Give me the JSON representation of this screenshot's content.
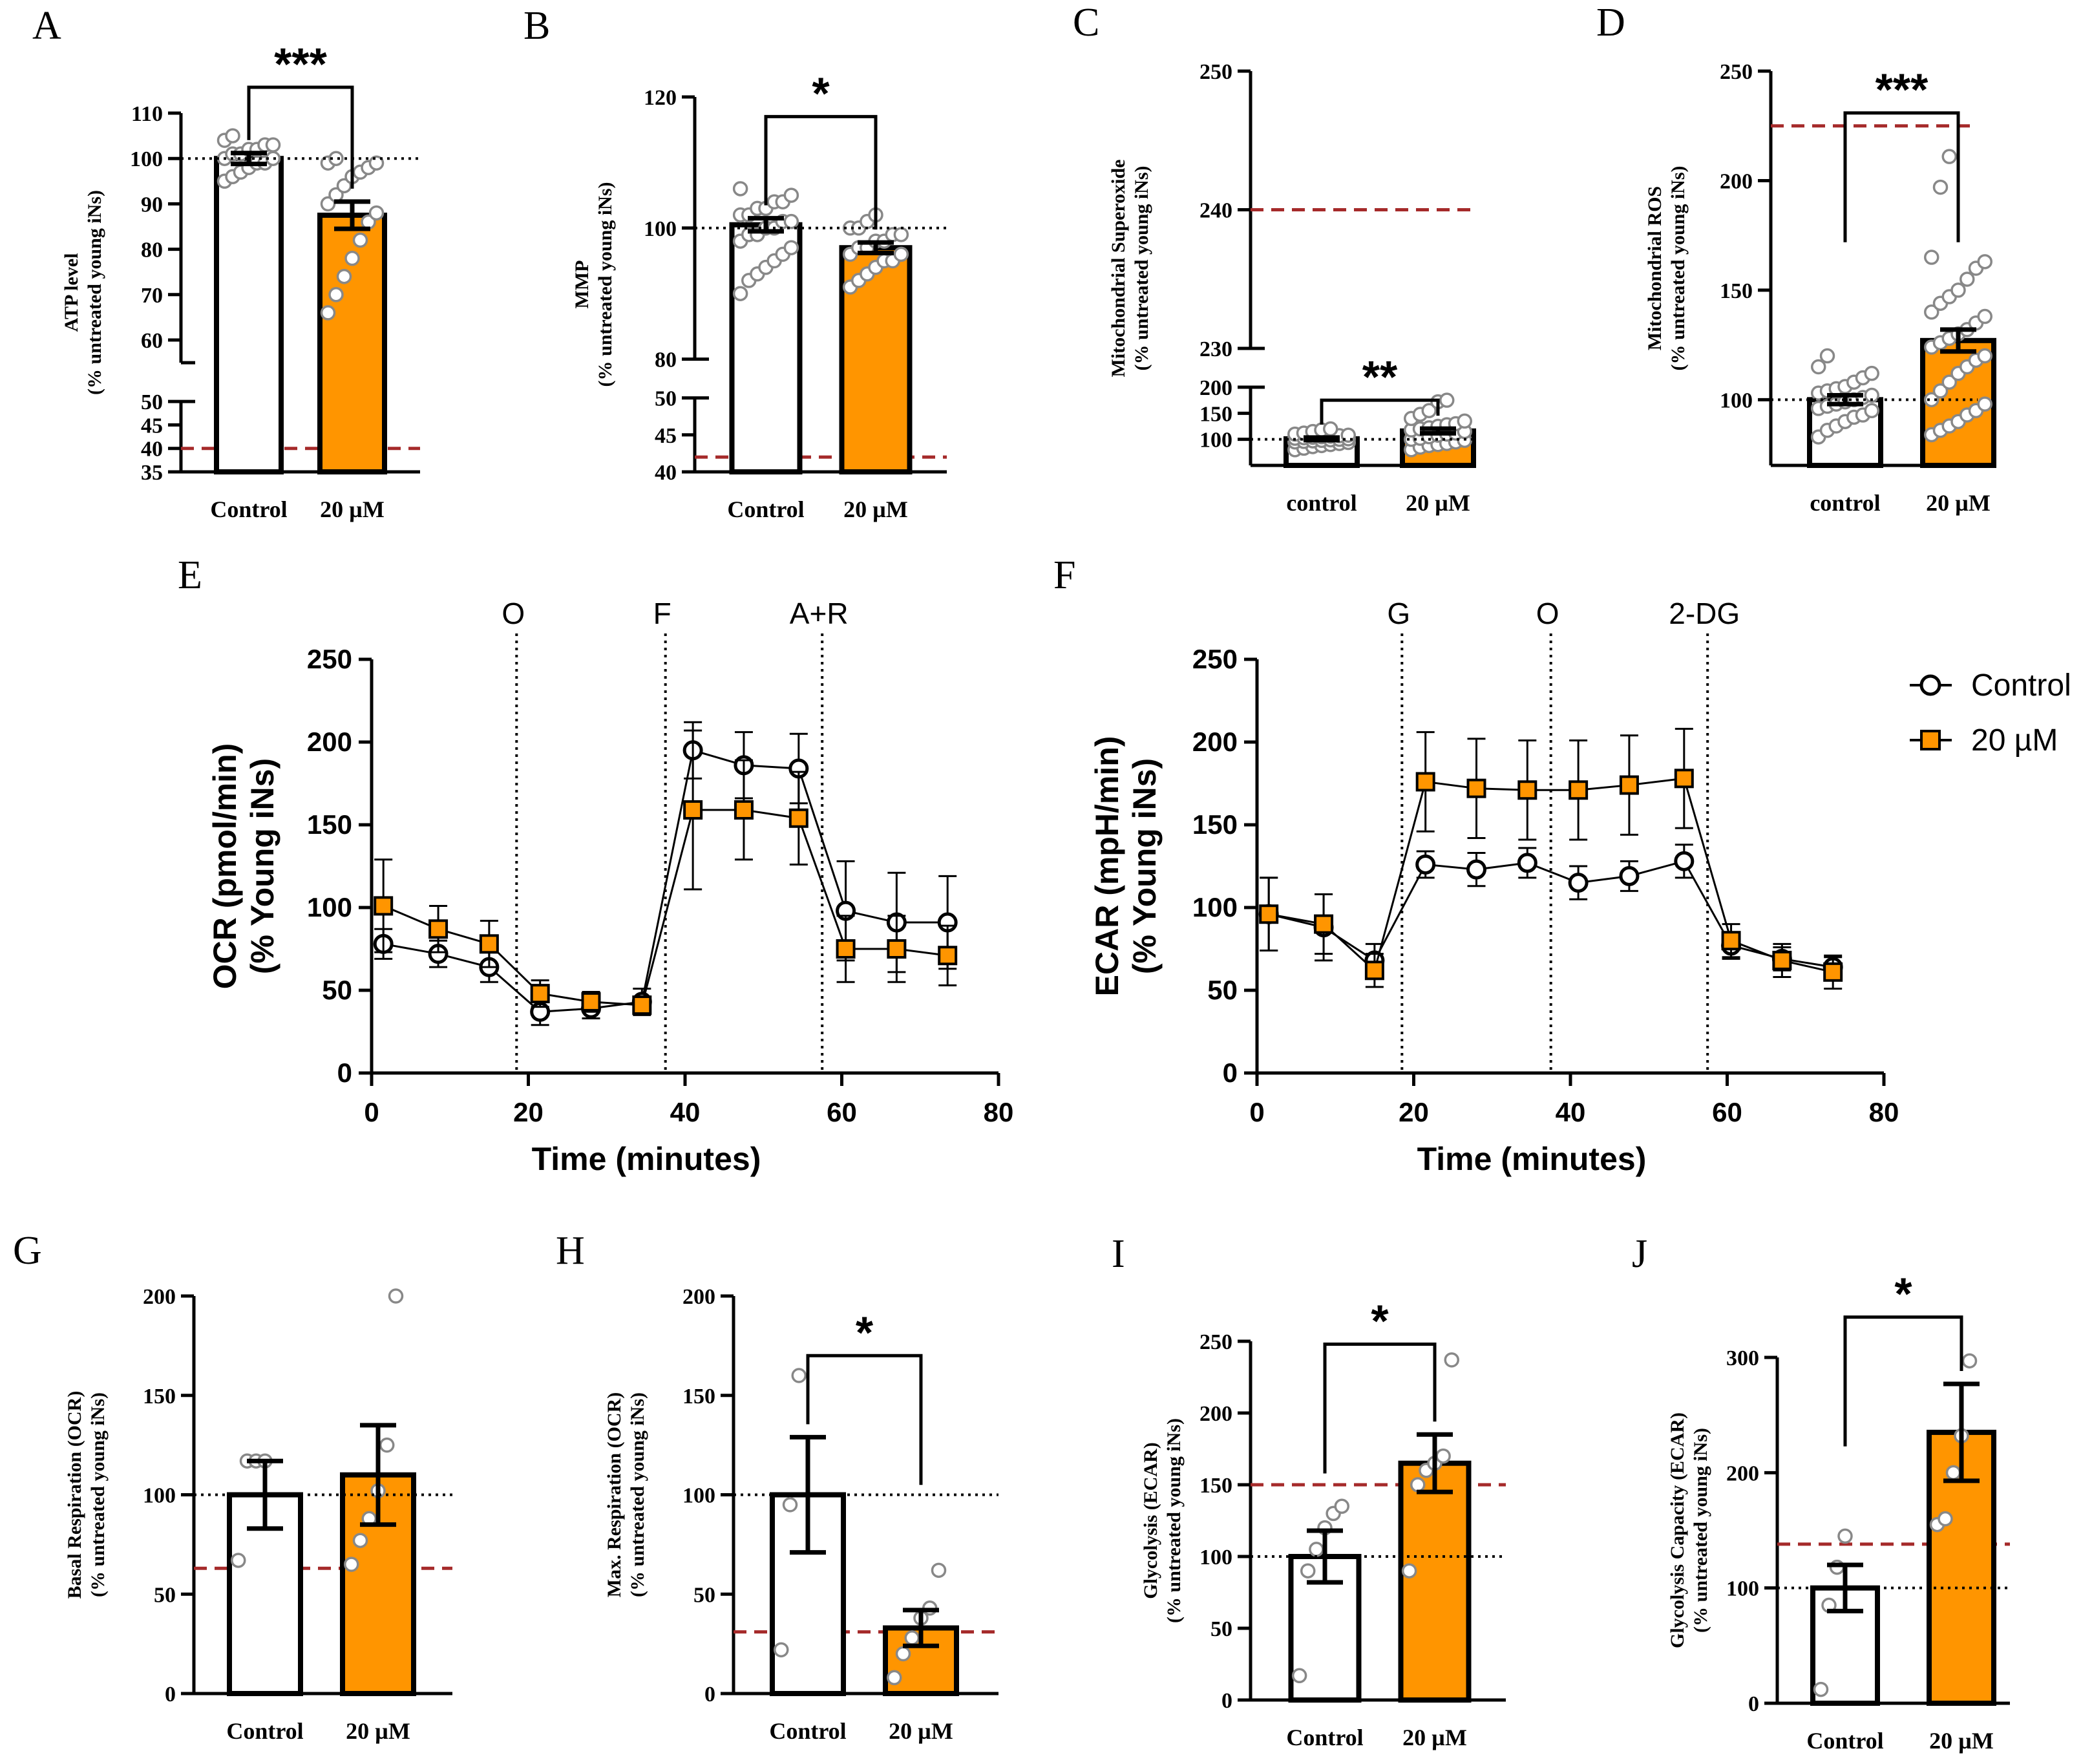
{
  "colors": {
    "orange": "#FF9500",
    "red_dash": "#A52A2A",
    "axis": "#000000",
    "dot": "#888888"
  },
  "legend": {
    "control": "Control",
    "treated": "20 µM"
  },
  "chart_data": [
    {
      "id": "A",
      "type": "bar",
      "letter": "A",
      "title": "",
      "ylabel": [
        "ATP level",
        "(% untreated young iNs)"
      ],
      "categories": [
        "Control",
        "20 µM"
      ],
      "values": [
        100,
        87.5
      ],
      "errors": [
        1.2,
        3
      ],
      "ylim": [
        35,
        110
      ],
      "axis_break": [
        50,
        55
      ],
      "yticks": [
        110,
        100,
        90,
        80,
        70,
        60,
        50,
        45,
        40,
        35
      ],
      "baseline": 100,
      "red_line": 40,
      "significance": "***",
      "points": [
        [
          95,
          96,
          97,
          98,
          99,
          99,
          100,
          100,
          101,
          101,
          102,
          102,
          103,
          103,
          104,
          105
        ],
        [
          66,
          70,
          74,
          78,
          82,
          86,
          88,
          90,
          92,
          94,
          96,
          97,
          98,
          99,
          99,
          100
        ]
      ]
    },
    {
      "id": "B",
      "type": "bar",
      "letter": "B",
      "title": "",
      "ylabel": [
        "MMP",
        "(% untreated young iNs)"
      ],
      "categories": [
        "Control",
        "20 µM"
      ],
      "values": [
        100.5,
        97
      ],
      "errors": [
        1,
        0.8
      ],
      "ylim": [
        40,
        120
      ],
      "axis_break": [
        50,
        80
      ],
      "yticks": [
        120,
        100,
        80,
        50,
        45,
        40
      ],
      "baseline": 100,
      "red_line": 42,
      "significance": "*",
      "points": [
        [
          90,
          92,
          93,
          94,
          95,
          96,
          97,
          98,
          99,
          99,
          100,
          100,
          101,
          101,
          102,
          102,
          103,
          103,
          104,
          104,
          105,
          106
        ],
        [
          91,
          92,
          93,
          94,
          95,
          95,
          96,
          96,
          97,
          97,
          98,
          98,
          99,
          99,
          100,
          100,
          101,
          102
        ]
      ]
    },
    {
      "id": "C",
      "type": "bar",
      "letter": "C",
      "title": "",
      "ylabel": [
        "Mitochondrial Superoxide",
        "(% untreated young iNs)"
      ],
      "categories": [
        "control",
        "20 µM"
      ],
      "values": [
        101,
        116
      ],
      "errors": [
        2.5,
        4.5
      ],
      "ylim": [
        50,
        250
      ],
      "axis_break": [
        200,
        230
      ],
      "yticks": [
        250,
        240,
        230,
        200,
        150,
        100
      ],
      "baseline": 100,
      "red_line": 240,
      "significance": "**",
      "points": [
        [
          80,
          83,
          86,
          88,
          90,
          92,
          94,
          95,
          96,
          97,
          98,
          99,
          100,
          101,
          102,
          103,
          104,
          105,
          106,
          107,
          108,
          110,
          112,
          115,
          118,
          120
        ],
        [
          80,
          85,
          88,
          90,
          92,
          95,
          98,
          100,
          102,
          105,
          108,
          110,
          112,
          115,
          118,
          120,
          122,
          125,
          128,
          130,
          135,
          140,
          148,
          155,
          172,
          175
        ]
      ]
    },
    {
      "id": "D",
      "type": "bar",
      "letter": "D",
      "title": "",
      "ylabel": [
        "Mitochondrial ROS",
        "(% untreated young iNs)"
      ],
      "categories": [
        "control",
        "20 µM"
      ],
      "values": [
        100,
        127
      ],
      "errors": [
        2,
        5
      ],
      "ylim": [
        70,
        250
      ],
      "axis_break": null,
      "yticks": [
        250,
        200,
        150,
        100
      ],
      "baseline": 100,
      "red_line": 225,
      "significance": "***",
      "points": [
        [
          83,
          86,
          88,
          90,
          92,
          93,
          95,
          96,
          97,
          98,
          99,
          100,
          101,
          102,
          103,
          104,
          105,
          106,
          108,
          110,
          112,
          115,
          120
        ],
        [
          84,
          86,
          88,
          90,
          93,
          95,
          98,
          100,
          104,
          108,
          112,
          115,
          118,
          120,
          124,
          126,
          128,
          130,
          132,
          135,
          138,
          140,
          144,
          147,
          150,
          155,
          160,
          163,
          165,
          197,
          211
        ]
      ]
    },
    {
      "id": "E",
      "type": "line",
      "letter": "E",
      "xlabel": "Time (minutes)",
      "ylabel": [
        "OCR (pmol/min)",
        "(% Young iNs)"
      ],
      "xlim": [
        0,
        80
      ],
      "ylim": [
        0,
        250
      ],
      "xticks": [
        0,
        20,
        40,
        60,
        80
      ],
      "yticks": [
        0,
        50,
        100,
        150,
        200,
        250
      ],
      "injections": [
        {
          "x": 18.5,
          "label": "O"
        },
        {
          "x": 37.5,
          "label": "F"
        },
        {
          "x": 57.5,
          "label": "A+R"
        }
      ],
      "series": [
        {
          "name": "Control",
          "x": [
            1.5,
            8.5,
            15,
            21.5,
            28,
            34.5,
            41,
            47.5,
            54.5,
            60.5,
            67,
            73.5
          ],
          "values": [
            78,
            72,
            64,
            37,
            39,
            43,
            195,
            186,
            184,
            98,
            91,
            91
          ],
          "errors": [
            9,
            8,
            9,
            8,
            6,
            8,
            17,
            20,
            21,
            30,
            30,
            28
          ]
        },
        {
          "name": "20 µM",
          "x": [
            1.5,
            8.5,
            15,
            21.5,
            28,
            34.5,
            41,
            47.5,
            54.5,
            60.5,
            67,
            73.5
          ],
          "values": [
            101,
            87,
            78,
            48,
            43,
            41,
            159,
            159,
            154,
            75,
            75,
            71
          ],
          "errors": [
            28,
            14,
            14,
            8,
            6,
            5,
            48,
            30,
            28,
            20,
            20,
            18
          ]
        }
      ]
    },
    {
      "id": "F",
      "type": "line",
      "letter": "F",
      "xlabel": "Time (minutes)",
      "ylabel": [
        "ECAR (mpH/min)",
        "(% Young iNs)"
      ],
      "xlim": [
        0,
        80
      ],
      "ylim": [
        0,
        250
      ],
      "xticks": [
        0,
        20,
        40,
        60,
        80
      ],
      "yticks": [
        0,
        50,
        100,
        150,
        200,
        250
      ],
      "injections": [
        {
          "x": 18.5,
          "label": "G"
        },
        {
          "x": 37.5,
          "label": "O"
        },
        {
          "x": 57.5,
          "label": "2-DG"
        }
      ],
      "series": [
        {
          "name": "Control",
          "x": [
            1.5,
            8.5,
            15,
            21.5,
            28,
            34.5,
            41,
            47.5,
            54.5,
            60.5,
            67,
            73.5
          ],
          "values": [
            96,
            88,
            68,
            126,
            123,
            127,
            115,
            119,
            128,
            77,
            69,
            64
          ],
          "errors": [
            22,
            20,
            10,
            8,
            10,
            9,
            10,
            9,
            10,
            8,
            7,
            6
          ]
        },
        {
          "name": "20 µM",
          "x": [
            1.5,
            8.5,
            15,
            21.5,
            28,
            34.5,
            41,
            47.5,
            54.5,
            60.5,
            67,
            73.5
          ],
          "values": [
            96,
            90,
            62,
            176,
            172,
            171,
            171,
            174,
            178,
            80,
            68,
            61
          ],
          "errors": [
            22,
            18,
            10,
            30,
            30,
            30,
            30,
            30,
            30,
            10,
            10,
            10
          ]
        }
      ]
    },
    {
      "id": "G",
      "type": "bar",
      "letter": "G",
      "title": "",
      "ylabel": [
        "Basal Respiration (OCR)",
        "(% untreated young iNs)"
      ],
      "categories": [
        "Control",
        "20 µM"
      ],
      "values": [
        100,
        110
      ],
      "errors": [
        17,
        25
      ],
      "ylim": [
        0,
        200
      ],
      "axis_break": null,
      "yticks": [
        200,
        150,
        100,
        50,
        0
      ],
      "baseline": 100,
      "red_line": 63,
      "significance": "",
      "points": [
        [
          67,
          117,
          117,
          117
        ],
        [
          65,
          77,
          88,
          102,
          125,
          200
        ]
      ]
    },
    {
      "id": "H",
      "type": "bar",
      "letter": "H",
      "title": "",
      "ylabel": [
        "Max. Respiration (OCR)",
        "(% untreated young iNs)"
      ],
      "categories": [
        "Control",
        "20 µM"
      ],
      "values": [
        100,
        33
      ],
      "errors": [
        29,
        9
      ],
      "ylim": [
        0,
        200
      ],
      "axis_break": null,
      "yticks": [
        200,
        150,
        100,
        50,
        0
      ],
      "baseline": 100,
      "red_line": 31,
      "significance": "*",
      "points": [
        [
          22,
          95,
          160
        ],
        [
          8,
          20,
          28,
          38,
          43,
          62
        ]
      ]
    },
    {
      "id": "I",
      "type": "bar",
      "letter": "I",
      "title": "",
      "ylabel": [
        "Glycolysis (ECAR)",
        "(% untreated young iNs)"
      ],
      "categories": [
        "Control",
        "20 µM"
      ],
      "values": [
        100,
        165
      ],
      "errors": [
        18,
        20
      ],
      "ylim": [
        0,
        250
      ],
      "axis_break": null,
      "yticks": [
        250,
        200,
        150,
        100,
        50,
        0
      ],
      "baseline": 100,
      "red_line": 150,
      "significance": "*",
      "points": [
        [
          17,
          90,
          105,
          120,
          130,
          135
        ],
        [
          90,
          150,
          160,
          165,
          170,
          237
        ]
      ]
    },
    {
      "id": "J",
      "type": "bar",
      "letter": "J",
      "title": "",
      "ylabel": [
        "Glycolysis Capacity (ECAR)",
        "(% untreated young iNs)"
      ],
      "categories": [
        "Control",
        "20 µM"
      ],
      "values": [
        100,
        235
      ],
      "errors": [
        20,
        42
      ],
      "ylim": [
        0,
        300
      ],
      "axis_break": null,
      "yticks": [
        300,
        200,
        100,
        0
      ],
      "baseline": 100,
      "red_line": 138,
      "significance": "*",
      "points": [
        [
          12,
          85,
          118,
          145
        ],
        [
          155,
          160,
          200,
          232,
          297
        ]
      ]
    }
  ]
}
